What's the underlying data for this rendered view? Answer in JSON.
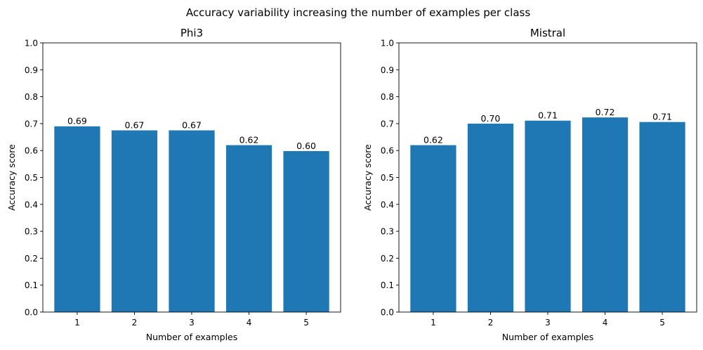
{
  "figure": {
    "title": "Accuracy variability increasing the number of examples per class"
  },
  "chart_data": [
    {
      "type": "bar",
      "title": "Phi3",
      "xlabel": "Number of examples",
      "ylabel": "Accuracy score",
      "categories": [
        "1",
        "2",
        "3",
        "4",
        "5"
      ],
      "values": [
        0.69,
        0.675,
        0.675,
        0.62,
        0.598
      ],
      "value_labels": [
        "0.69",
        "0.67",
        "0.67",
        "0.62",
        "0.60"
      ],
      "ylim": [
        0,
        1.0
      ],
      "yticks": [
        "0.0",
        "0.1",
        "0.2",
        "0.3",
        "0.4",
        "0.5",
        "0.6",
        "0.7",
        "0.8",
        "0.9",
        "1.0"
      ],
      "bar_color": "#1f77b4",
      "grid": false
    },
    {
      "type": "bar",
      "title": "Mistral",
      "xlabel": "Number of examples",
      "ylabel": "Accuracy score",
      "categories": [
        "1",
        "2",
        "3",
        "4",
        "5"
      ],
      "values": [
        0.62,
        0.7,
        0.711,
        0.723,
        0.706
      ],
      "value_labels": [
        "0.62",
        "0.70",
        "0.71",
        "0.72",
        "0.71"
      ],
      "ylim": [
        0,
        1.0
      ],
      "yticks": [
        "0.0",
        "0.1",
        "0.2",
        "0.3",
        "0.4",
        "0.5",
        "0.6",
        "0.7",
        "0.8",
        "0.9",
        "1.0"
      ],
      "bar_color": "#1f77b4",
      "grid": false
    }
  ]
}
